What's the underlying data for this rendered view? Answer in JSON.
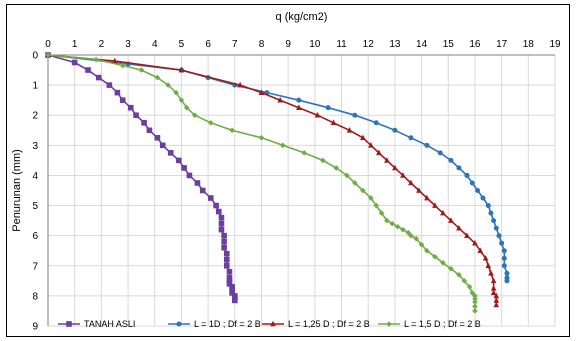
{
  "chart_data": {
    "type": "line",
    "title": "",
    "xlabel": "q (kg/cm2)",
    "ylabel": "Penurunan (mm)",
    "xlim": [
      0,
      19
    ],
    "ylim": [
      0,
      9
    ],
    "y_inverted": true,
    "x_axis_position": "top",
    "grid": true,
    "legend_position": "bottom",
    "x_ticks": [
      "0",
      "1",
      "2",
      "3",
      "4",
      "5",
      "6",
      "7",
      "8",
      "9",
      "10",
      "11",
      "12",
      "13",
      "14",
      "15",
      "16",
      "17",
      "18",
      "19"
    ],
    "y_ticks": [
      "0",
      "1",
      "2",
      "3",
      "4",
      "5",
      "6",
      "7",
      "8",
      "9"
    ],
    "series": [
      {
        "name": "TANAH ASLI",
        "color": "#6b3fa0",
        "marker": "square",
        "x": [
          0,
          1,
          1.5,
          1.9,
          2.3,
          2.6,
          2.8,
          3.1,
          3.3,
          3.6,
          3.8,
          4.1,
          4.3,
          4.6,
          4.9,
          5.1,
          5.3,
          5.6,
          5.8,
          6.1,
          6.3,
          6.4,
          6.5,
          6.5,
          6.5,
          6.6,
          6.6,
          6.6,
          6.7,
          6.7,
          6.7,
          6.8,
          6.8,
          6.8,
          6.8,
          6.9,
          6.9,
          6.9,
          7,
          7,
          7,
          7
        ],
        "y": [
          0,
          0.25,
          0.5,
          0.75,
          1,
          1.25,
          1.5,
          1.75,
          2,
          2.25,
          2.5,
          2.75,
          3,
          3.25,
          3.5,
          3.75,
          4,
          4.25,
          4.5,
          4.75,
          5,
          5.2,
          5.4,
          5.6,
          5.8,
          6,
          6.2,
          6.4,
          6.6,
          6.8,
          7,
          7.2,
          7.4,
          7.5,
          7.6,
          7.7,
          7.8,
          7.9,
          8,
          8.05,
          8.1,
          8.15
        ]
      },
      {
        "name": "L = 1D ; Df = 2 B",
        "color": "#2e75b6",
        "marker": "circle",
        "x": [
          0,
          3,
          5,
          6,
          7,
          8.2,
          9.4,
          10.5,
          11.5,
          12.3,
          13,
          13.6,
          14.2,
          14.7,
          15.1,
          15.4,
          15.7,
          15.9,
          16.1,
          16.3,
          16.5,
          16.6,
          16.7,
          16.8,
          16.9,
          17,
          17.1,
          17.1,
          17.1,
          17.2,
          17.2,
          17.2
        ],
        "y": [
          0,
          0.3,
          0.5,
          0.75,
          1,
          1.25,
          1.5,
          1.75,
          2,
          2.25,
          2.5,
          2.75,
          3,
          3.25,
          3.5,
          3.75,
          4,
          4.25,
          4.5,
          4.75,
          5,
          5.25,
          5.5,
          5.75,
          6,
          6.25,
          6.5,
          6.75,
          7,
          7.25,
          7.4,
          7.5
        ]
      },
      {
        "name": "L = 1,25 D ; Df = 2 B",
        "color": "#9e1b1b",
        "marker": "triangle",
        "x": [
          0,
          2.5,
          5,
          7.2,
          8,
          8.7,
          9.4,
          10.1,
          10.7,
          11.3,
          11.8,
          12.1,
          12.4,
          12.7,
          13,
          13.3,
          13.6,
          13.9,
          14.2,
          14.5,
          14.8,
          15.1,
          15.4,
          15.7,
          16,
          16.2,
          16.4,
          16.5,
          16.6,
          16.7,
          16.7,
          16.7,
          16.8,
          16.8,
          16.8
        ],
        "y": [
          0,
          0.2,
          0.5,
          1,
          1.25,
          1.5,
          1.75,
          2,
          2.25,
          2.5,
          2.75,
          3,
          3.25,
          3.5,
          3.75,
          4,
          4.25,
          4.5,
          4.75,
          5,
          5.25,
          5.5,
          5.75,
          6,
          6.25,
          6.5,
          6.75,
          7,
          7.25,
          7.5,
          7.75,
          7.9,
          8,
          8.15,
          8.3
        ]
      },
      {
        "name": "L = 1,5 D ; Df = 2 B",
        "color": "#70ad47",
        "marker": "diamond",
        "x": [
          0,
          1.8,
          2.8,
          3.5,
          4.1,
          4.5,
          4.8,
          5,
          5.2,
          5.5,
          6.1,
          6.9,
          8,
          8.8,
          9.6,
          10.3,
          10.8,
          11.2,
          11.5,
          11.8,
          12.1,
          12.3,
          12.5,
          12.7,
          12.9,
          13.1,
          13.3,
          13.5,
          13.6,
          13.8,
          14,
          14.2,
          14.5,
          14.8,
          15.1,
          15.4,
          15.6,
          15.8,
          15.9,
          16,
          16,
          16,
          16,
          16
        ],
        "y": [
          0,
          0.15,
          0.35,
          0.5,
          0.75,
          1,
          1.25,
          1.5,
          1.75,
          2,
          2.25,
          2.5,
          2.75,
          3,
          3.25,
          3.5,
          3.75,
          4,
          4.25,
          4.5,
          4.75,
          5,
          5.25,
          5.5,
          5.6,
          5.7,
          5.8,
          5.9,
          6,
          6.1,
          6.3,
          6.5,
          6.7,
          6.9,
          7.1,
          7.3,
          7.5,
          7.7,
          7.9,
          8,
          8.1,
          8.2,
          8.35,
          8.5
        ]
      }
    ]
  }
}
